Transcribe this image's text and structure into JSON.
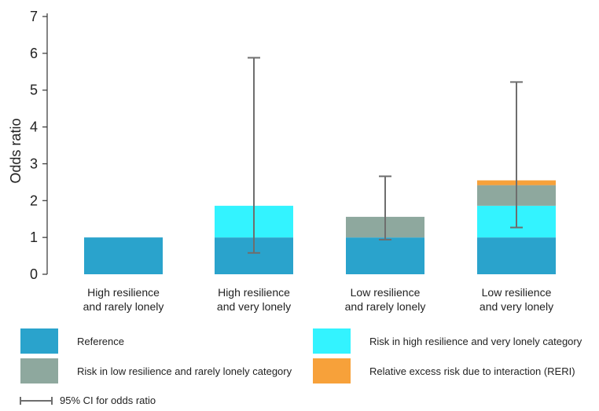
{
  "chart_data": {
    "type": "bar",
    "stacked": true,
    "title": "",
    "xlabel": "",
    "ylabel": "Odds ratio",
    "ylim": [
      0,
      7
    ],
    "yticks": [
      0,
      1,
      2,
      3,
      4,
      5,
      6,
      7
    ],
    "categories": [
      [
        "High resilience",
        "and rarely lonely"
      ],
      [
        "High resilience",
        "and very lonely"
      ],
      [
        "Low resilience",
        "and rarely lonely"
      ],
      [
        "Low resilience",
        "and very lonely"
      ]
    ],
    "series": [
      {
        "name": "Reference",
        "color": "#2aa3cc",
        "values": [
          1.0,
          1.0,
          1.0,
          1.0
        ]
      },
      {
        "name": "Risk in high resilience and very lonely category",
        "color": "#33f3ff",
        "values": [
          0,
          0.86,
          0,
          0.86
        ]
      },
      {
        "name": "Risk in low resilience and rarely lonely category",
        "color": "#8ea89e",
        "values": [
          0,
          0,
          0.56,
          0.56
        ]
      },
      {
        "name": "Relative excess risk due to interaction (RERI)",
        "color": "#f7a13a",
        "values": [
          0,
          0,
          0,
          0.13
        ]
      }
    ],
    "ci": {
      "name": "95% CI for odds ratio",
      "color": "#6e6e6e",
      "intervals": [
        null,
        [
          0.58,
          5.88
        ],
        [
          0.94,
          2.66
        ],
        [
          1.27,
          5.22
        ]
      ]
    }
  },
  "legend": {
    "reference": "Reference",
    "high_res_very_lonely": "Risk in high resilience and very lonely category",
    "low_res_rarely_lonely": "Risk in low resilience and rarely lonely category",
    "reri": "Relative excess risk due to interaction (RERI)",
    "ci": "95% CI for odds ratio"
  }
}
